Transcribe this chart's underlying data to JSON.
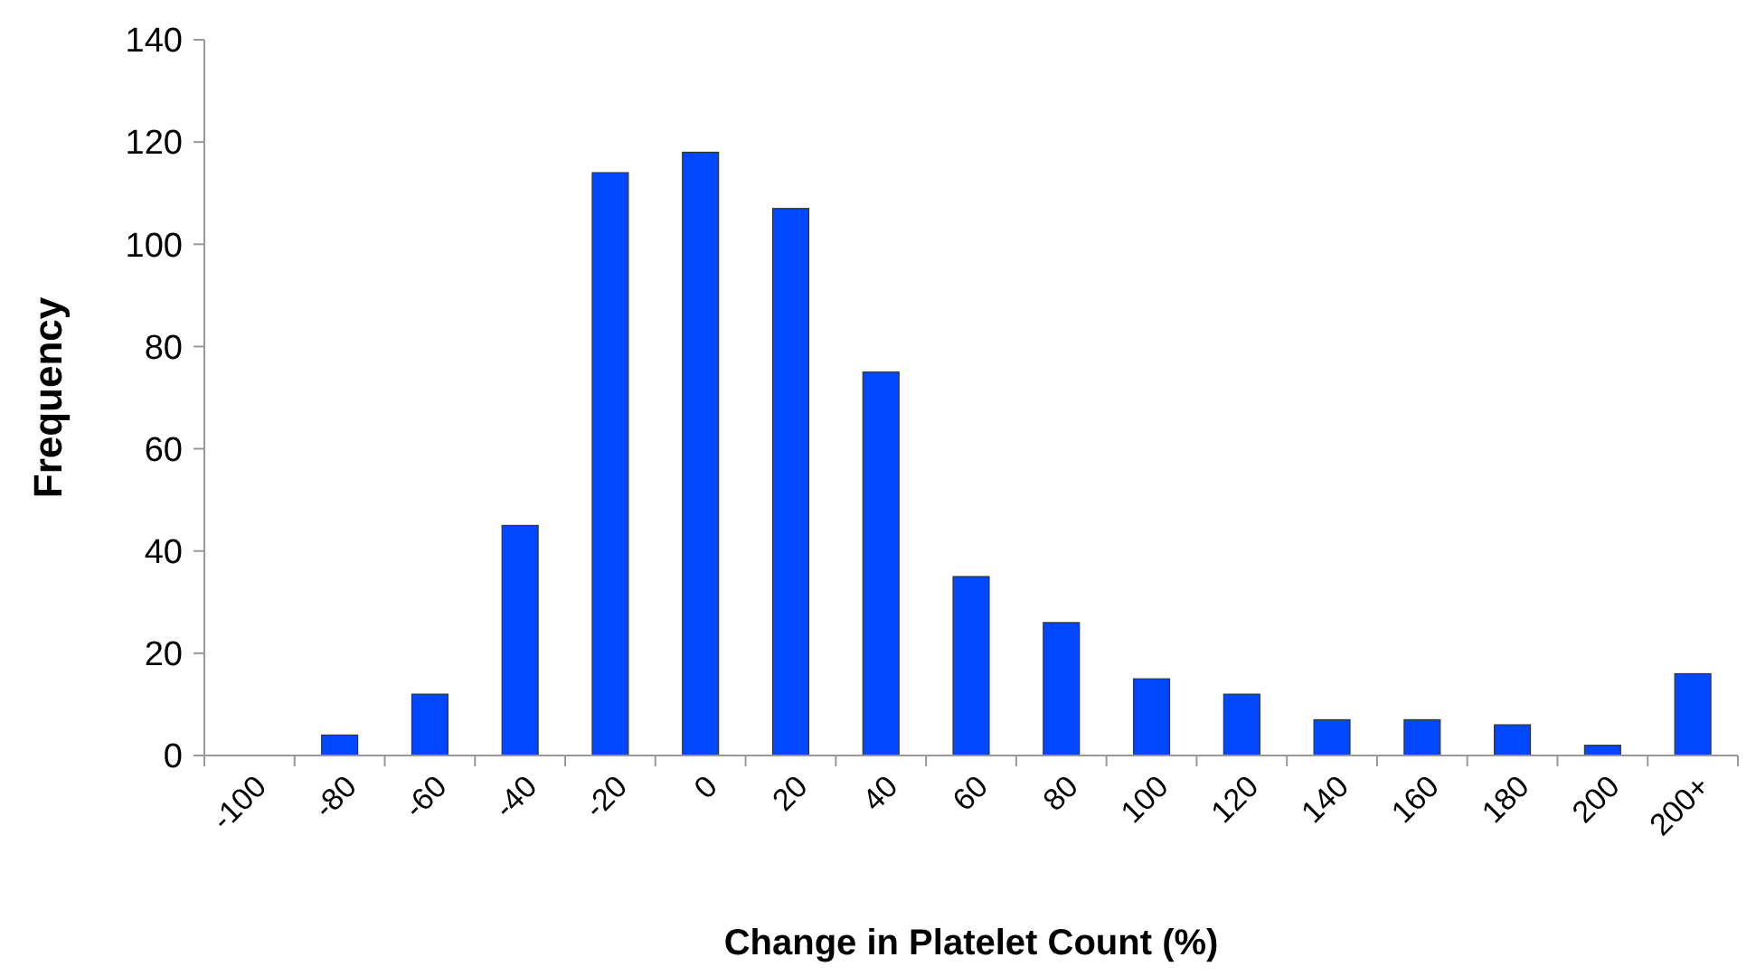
{
  "chart_data": {
    "type": "bar",
    "xlabel": "Change in Platelet Count (%)",
    "ylabel": "Frequency",
    "categories": [
      "-100",
      "-80",
      "-60",
      "-40",
      "-20",
      "0",
      "20",
      "40",
      "60",
      "80",
      "100",
      "120",
      "140",
      "160",
      "180",
      "200",
      "200+"
    ],
    "values": [
      0,
      4,
      12,
      45,
      114,
      118,
      107,
      75,
      35,
      26,
      15,
      12,
      7,
      7,
      6,
      2,
      16
    ],
    "color": "#0047ff",
    "ylim": [
      0,
      140
    ],
    "yticks": [
      0,
      20,
      40,
      60,
      80,
      100,
      120,
      140
    ],
    "grid": false
  }
}
